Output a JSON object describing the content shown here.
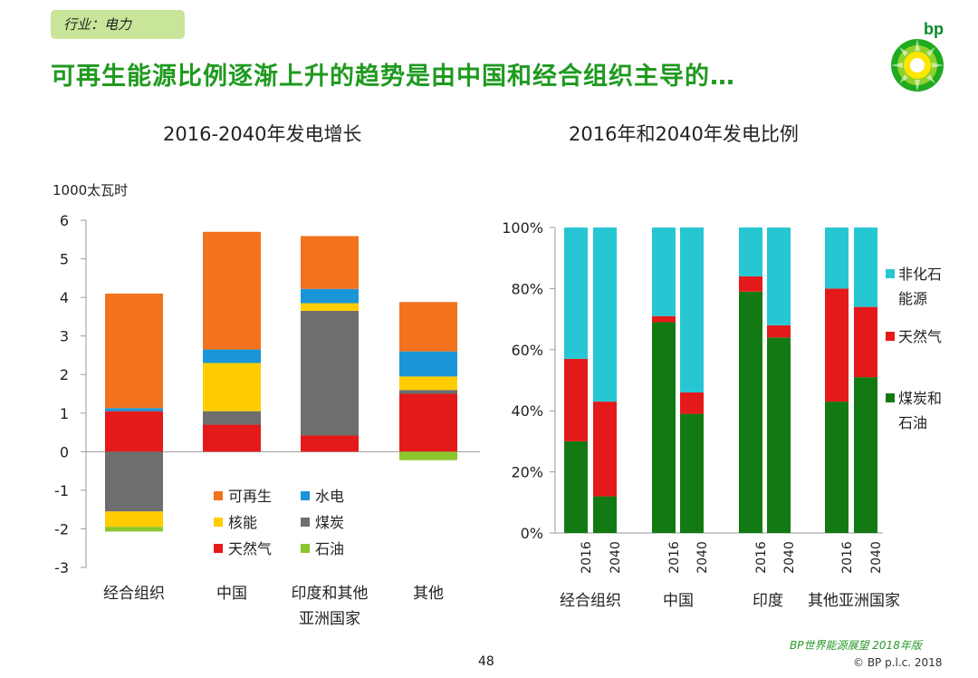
{
  "header": {
    "tag": "行业：电力",
    "headline": "可再生能源比例逐渐上升的趋势是由中国和经合组织主导的…",
    "logo_text": "bp"
  },
  "footer": {
    "page_number": "48",
    "source": "BP世界能源展望 2018年版",
    "copyright": "© BP p.l.c. 2018"
  },
  "chart_data": [
    {
      "type": "bar",
      "stacked": true,
      "title": "2016-2040年发电增长",
      "ylabel": "1000太瓦时",
      "ylim": [
        -3,
        6
      ],
      "yticks": [
        "6",
        "5",
        "4",
        "3",
        "2",
        "1",
        "0",
        "-1",
        "-2",
        "-3"
      ],
      "categories": [
        "经合组织",
        "中国",
        "印度和其他|亚洲国家",
        "其他"
      ],
      "series": [
        {
          "name": "天然气",
          "color": "#e41a1a",
          "values": [
            1.05,
            0.7,
            0.42,
            1.5
          ]
        },
        {
          "name": "煤炭",
          "color": "#6e6e6e",
          "values": [
            -1.55,
            0.35,
            3.23,
            0.1
          ]
        },
        {
          "name": "核能",
          "color": "#ffcc00",
          "values": [
            -0.4,
            1.25,
            0.2,
            0.35
          ]
        },
        {
          "name": "水电",
          "color": "#1a96d8",
          "values": [
            0.08,
            0.35,
            0.37,
            0.65
          ]
        },
        {
          "name": "可再生",
          "color": "#f2721e",
          "values": [
            2.97,
            3.05,
            1.37,
            1.28
          ]
        },
        {
          "name": "石油",
          "color": "#8ac72e",
          "values": [
            -0.12,
            0.0,
            0.0,
            -0.22
          ]
        }
      ],
      "legend": [
        "可再生",
        "水电",
        "核能",
        "煤炭",
        "天然气",
        "石油"
      ],
      "legend_position": "bottom-center"
    },
    {
      "type": "bar",
      "stacked": true,
      "percent": true,
      "title": "2016年和2040年发电比例",
      "ylim": [
        0,
        100
      ],
      "yticks": [
        "100%",
        "80%",
        "60%",
        "40%",
        "20%",
        "0%"
      ],
      "groups": [
        "经合组织",
        "中国",
        "印度",
        "其他亚洲国家"
      ],
      "x": [
        "2016",
        "2040",
        "2016",
        "2040",
        "2016",
        "2040",
        "2016",
        "2040"
      ],
      "series": [
        {
          "name": "煤炭和石油",
          "color": "#137a13",
          "values": [
            30,
            12,
            69,
            39,
            79,
            64,
            43,
            51
          ]
        },
        {
          "name": "天然气",
          "color": "#e41a1a",
          "values": [
            27,
            31,
            2,
            7,
            5,
            4,
            37,
            23
          ]
        },
        {
          "name": "非化石能源",
          "color": "#27c6d3",
          "values": [
            43,
            57,
            29,
            54,
            16,
            32,
            20,
            26
          ]
        }
      ],
      "legend": [
        "非化石|能源",
        "天然气",
        "煤炭和|石油"
      ],
      "legend_position": "right"
    }
  ]
}
